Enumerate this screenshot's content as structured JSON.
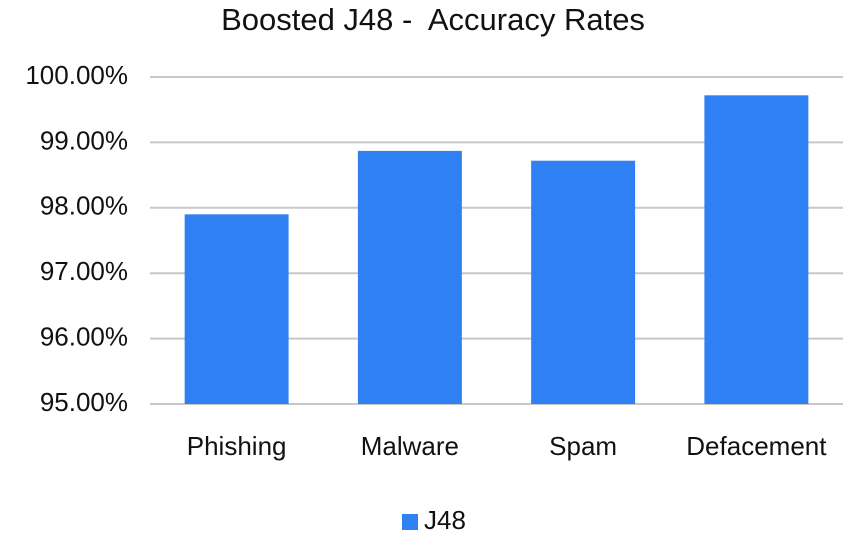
{
  "chart_data": {
    "type": "bar",
    "title": "Boosted J48 -  Accuracy Rates",
    "categories": [
      "Phishing",
      "Malware",
      "Spam",
      "Defacement"
    ],
    "series": [
      {
        "name": "J48",
        "color": "#2f80f3",
        "values": [
          97.9,
          98.87,
          98.72,
          99.72
        ]
      }
    ],
    "ylim": [
      95,
      100
    ],
    "yticks": [
      {
        "value": 95,
        "label": "95.00%"
      },
      {
        "value": 96,
        "label": "96.00%"
      },
      {
        "value": 97,
        "label": "97.00%"
      },
      {
        "value": 98,
        "label": "98.00%"
      },
      {
        "value": 99,
        "label": "99.00%"
      },
      {
        "value": 100,
        "label": "100.00%"
      }
    ],
    "grid": true,
    "legend": "bottom"
  }
}
